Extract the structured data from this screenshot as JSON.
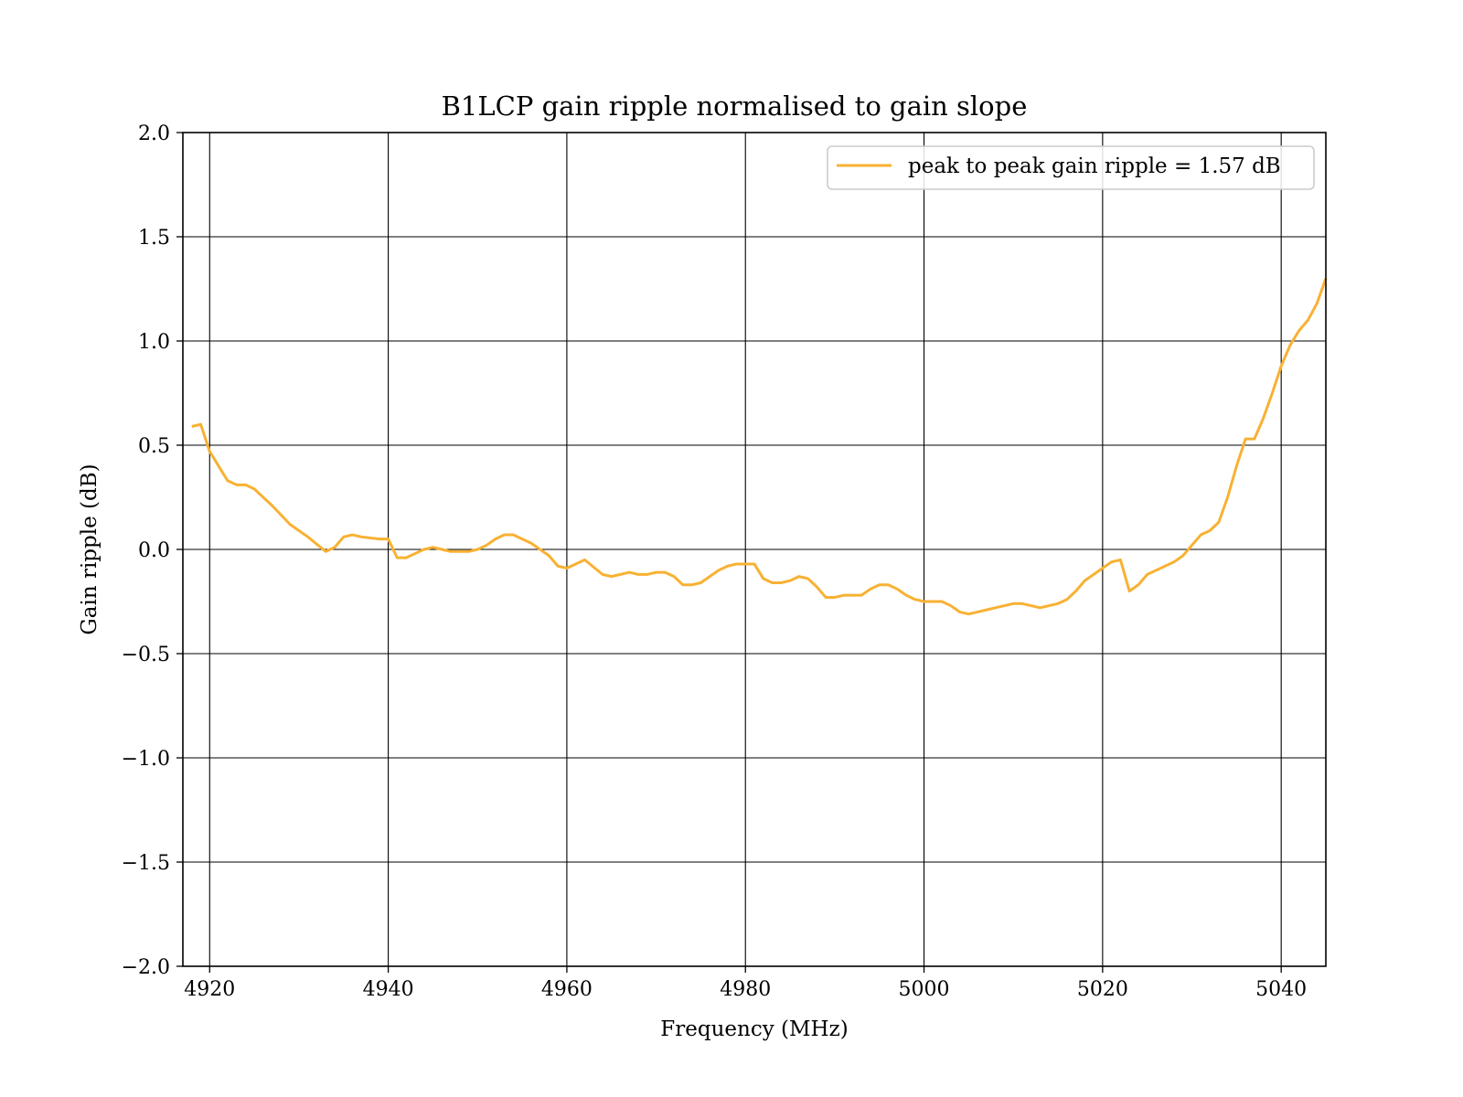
{
  "chart_data": {
    "type": "line",
    "title": "B1LCP gain ripple normalised to gain slope",
    "xlabel": "Frequency (MHz)",
    "ylabel": "Gain ripple (dB)",
    "xlim": [
      4917,
      5045
    ],
    "ylim": [
      -2.0,
      2.0
    ],
    "xticks": [
      4920,
      4940,
      4960,
      4980,
      5000,
      5020,
      5040
    ],
    "xtick_labels": [
      "4920",
      "4940",
      "4960",
      "4980",
      "5000",
      "5020",
      "5040"
    ],
    "yticks": [
      -2.0,
      -1.5,
      -1.0,
      -0.5,
      0.0,
      0.5,
      1.0,
      1.5,
      2.0
    ],
    "ytick_labels": [
      "−2.0",
      "−1.5",
      "−1.0",
      "−0.5",
      "0.0",
      "0.5",
      "1.0",
      "1.5",
      "2.0"
    ],
    "grid": true,
    "legend_position": "top-right",
    "series": [
      {
        "name": "peak to peak gain ripple = 1.57 dB",
        "color": "#f8b133",
        "x": [
          4918,
          4919,
          4920,
          4922,
          4923,
          4924,
          4925,
          4926,
          4927,
          4929,
          4931,
          4933,
          4934,
          4935,
          4936,
          4937,
          4939,
          4940,
          4941,
          4942,
          4943,
          4944,
          4945,
          4946,
          4947,
          4948,
          4949,
          4950,
          4951,
          4952,
          4953,
          4954,
          4955,
          4956,
          4957,
          4958,
          4959,
          4960,
          4962,
          4964,
          4965,
          4967,
          4968,
          4969,
          4970,
          4971,
          4972,
          4973,
          4974,
          4975,
          4976,
          4977,
          4978,
          4979,
          4980,
          4981,
          4982,
          4983,
          4984,
          4985,
          4986,
          4987,
          4988,
          4989,
          4990,
          4991,
          4992,
          4993,
          4994,
          4995,
          4996,
          4997,
          4998,
          4999,
          5000,
          5001,
          5002,
          5003,
          5004,
          5005,
          5006,
          5007,
          5008,
          5009,
          5010,
          5011,
          5012,
          5013,
          5014,
          5015,
          5016,
          5017,
          5018,
          5019,
          5020,
          5021,
          5022,
          5023,
          5024,
          5025,
          5026,
          5027,
          5028,
          5029,
          5030,
          5031,
          5032,
          5033,
          5034,
          5035,
          5036,
          5037,
          5038,
          5039,
          5040,
          5041,
          5042,
          5043,
          5044,
          5045
        ],
        "values": [
          0.59,
          0.6,
          0.47,
          0.33,
          0.31,
          0.31,
          0.29,
          0.25,
          0.21,
          0.12,
          0.06,
          -0.01,
          0.01,
          0.06,
          0.07,
          0.06,
          0.05,
          0.05,
          -0.04,
          -0.04,
          -0.02,
          0.0,
          0.01,
          0.0,
          -0.01,
          -0.01,
          -0.01,
          0.0,
          0.02,
          0.05,
          0.07,
          0.07,
          0.05,
          0.03,
          0.0,
          -0.03,
          -0.08,
          -0.09,
          -0.05,
          -0.12,
          -0.13,
          -0.11,
          -0.12,
          -0.12,
          -0.11,
          -0.11,
          -0.13,
          -0.17,
          -0.17,
          -0.16,
          -0.13,
          -0.1,
          -0.08,
          -0.07,
          -0.07,
          -0.07,
          -0.14,
          -0.16,
          -0.16,
          -0.15,
          -0.13,
          -0.14,
          -0.18,
          -0.23,
          -0.23,
          -0.22,
          -0.22,
          -0.22,
          -0.19,
          -0.17,
          -0.17,
          -0.19,
          -0.22,
          -0.24,
          -0.25,
          -0.25,
          -0.25,
          -0.27,
          -0.3,
          -0.31,
          -0.3,
          -0.29,
          -0.28,
          -0.27,
          -0.26,
          -0.26,
          -0.27,
          -0.28,
          -0.27,
          -0.26,
          -0.24,
          -0.2,
          -0.15,
          -0.12,
          -0.09,
          -0.06,
          -0.05,
          -0.2,
          -0.17,
          -0.12,
          -0.1,
          -0.08,
          -0.06,
          -0.03,
          0.02,
          0.07,
          0.09,
          0.13,
          0.25,
          0.4,
          0.53,
          0.53,
          0.63,
          0.75,
          0.88,
          0.98,
          1.05,
          1.1,
          1.18,
          1.3
        ]
      }
    ]
  }
}
